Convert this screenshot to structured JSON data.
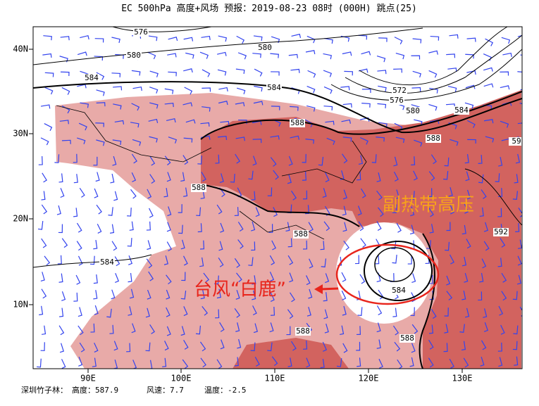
{
  "header": {
    "title": "EC 500hPa 高度+风场  预报：2019-08-23 08时 (000H) 跳点(25)"
  },
  "map": {
    "lat_labels": [
      "40N",
      "30N",
      "20N",
      "10N"
    ],
    "lon_labels": [
      "90E",
      "100E",
      "110E",
      "120E",
      "130E"
    ],
    "contour_labels": [
      "576",
      "580",
      "580",
      "584",
      "584",
      "572",
      "576",
      "580",
      "584",
      "588",
      "588",
      "59",
      "588",
      "588",
      "592",
      "584",
      "584",
      "588",
      "588"
    ],
    "annotations": {
      "subtropical_high": "副热带高压",
      "typhoon": "台风“白鹿”"
    }
  },
  "footer": {
    "station": "深圳竹子林：",
    "height": "高度：587.9",
    "wind": "风速：7.7",
    "temperature": "温度：-2.5"
  }
}
